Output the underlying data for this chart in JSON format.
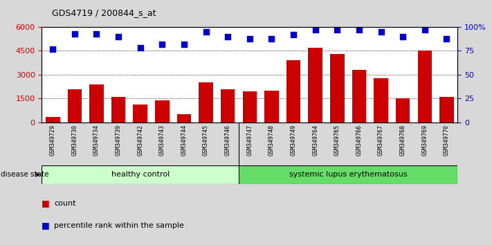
{
  "title": "GDS4719 / 200844_s_at",
  "categories": [
    "GSM349729",
    "GSM349730",
    "GSM349734",
    "GSM349739",
    "GSM349742",
    "GSM349743",
    "GSM349744",
    "GSM349745",
    "GSM349746",
    "GSM349747",
    "GSM349748",
    "GSM349749",
    "GSM349764",
    "GSM349765",
    "GSM349766",
    "GSM349767",
    "GSM349768",
    "GSM349769",
    "GSM349770"
  ],
  "counts": [
    350,
    2100,
    2400,
    1600,
    1150,
    1400,
    500,
    2500,
    2100,
    1950,
    2000,
    3900,
    4700,
    4300,
    3300,
    2800,
    1500,
    4500,
    1600
  ],
  "percentiles": [
    77,
    93,
    93,
    90,
    78,
    82,
    82,
    95,
    90,
    88,
    88,
    92,
    97,
    97,
    97,
    95,
    90,
    97,
    88
  ],
  "healthy_control_count": 9,
  "systemic_lupus_count": 10,
  "bar_color": "#cc0000",
  "dot_color": "#0000cc",
  "left_axis_color": "#cc0000",
  "right_axis_color": "#0000cc",
  "ylim_left": [
    0,
    6000
  ],
  "ylim_right": [
    0,
    100
  ],
  "left_ticks": [
    0,
    1500,
    3000,
    4500,
    6000
  ],
  "right_ticks": [
    0,
    25,
    50,
    75,
    100
  ],
  "healthy_color": "#ccffcc",
  "lupus_color": "#66dd66",
  "group_label_healthy": "healthy control",
  "group_label_lupus": "systemic lupus erythematosus",
  "disease_state_label": "disease state",
  "legend_count_label": "count",
  "legend_percentile_label": "percentile rank within the sample",
  "fig_bg_color": "#d8d8d8",
  "plot_bg_color": "#ffffff",
  "xtick_bg_color": "#c8c8c8"
}
